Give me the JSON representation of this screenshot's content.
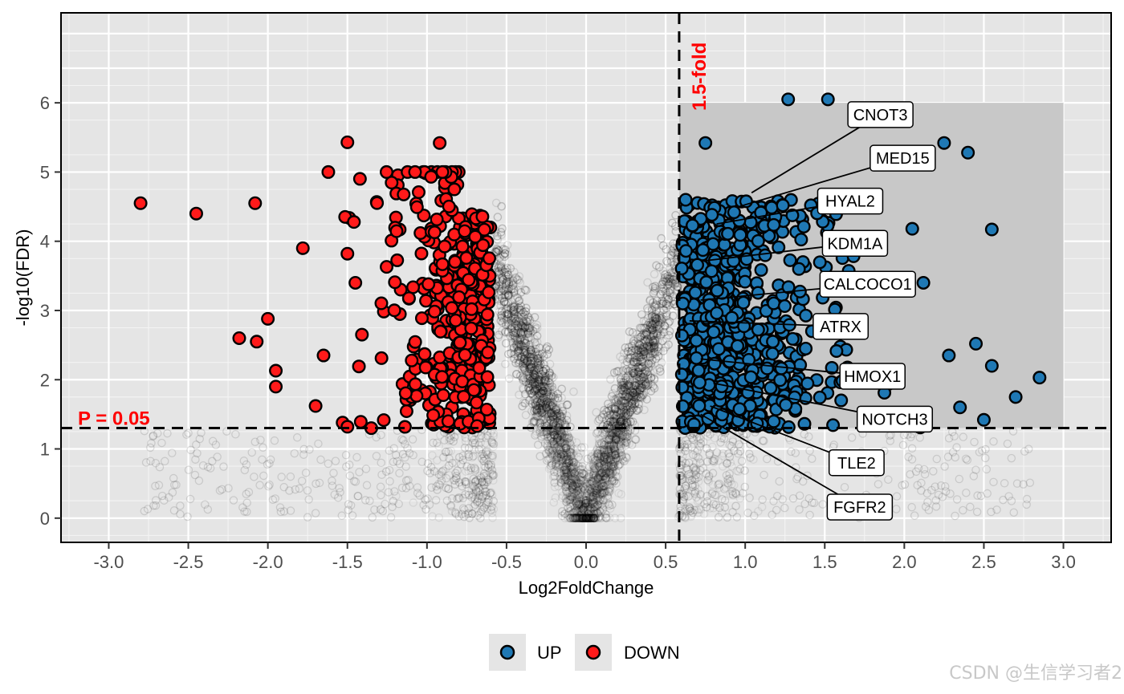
{
  "chart_data": {
    "type": "scatter",
    "title": "",
    "xlabel": "Log2FoldChange",
    "ylabel": "-log10(FDR)",
    "xlim": [
      -3.3,
      3.3
    ],
    "ylim": [
      -0.35,
      7.3
    ],
    "x_ticks": [
      -3.0,
      -2.5,
      -2.0,
      -1.5,
      -1.0,
      -0.5,
      0.0,
      0.5,
      1.0,
      1.5,
      2.0,
      2.5,
      3.0
    ],
    "x_tick_labels": [
      "-3.0",
      "-2.5",
      "-2.0",
      "-1.5",
      "-1.0",
      "-0.5",
      "0.0",
      "0.5",
      "1.0",
      "1.5",
      "2.0",
      "2.5",
      "3.0"
    ],
    "y_ticks": [
      0,
      1,
      2,
      3,
      4,
      5,
      6
    ],
    "y_tick_labels": [
      "0",
      "1",
      "2",
      "3",
      "4",
      "5",
      "6"
    ],
    "grid": true,
    "threshold_lines": {
      "fold_x": 0.585,
      "fold_label": "1.5-fold",
      "p_y": 1.301,
      "p_label": "P = 0.05"
    },
    "highlight_region": {
      "x": [
        0.585,
        3.0
      ],
      "y": [
        1.301,
        6.0
      ]
    },
    "legend": {
      "position": "bottom",
      "entries": [
        {
          "name": "UP",
          "color": "#1f78b4"
        },
        {
          "name": "DOWN",
          "color": "#ff1a1a"
        }
      ]
    },
    "series": [
      {
        "name": "UP",
        "color": "#1f78b4"
      },
      {
        "name": "DOWN",
        "color": "#ff1a1a"
      },
      {
        "name": "not significant",
        "color": "#000000"
      }
    ],
    "highlighted_down_points": [
      {
        "x": -2.8,
        "y": 4.55
      },
      {
        "x": -2.45,
        "y": 4.4
      },
      {
        "x": -2.08,
        "y": 4.55
      },
      {
        "x": -1.5,
        "y": 5.43
      },
      {
        "x": -0.92,
        "y": 5.42
      },
      {
        "x": -1.62,
        "y": 5.0
      },
      {
        "x": -1.78,
        "y": 3.9
      },
      {
        "x": -2.18,
        "y": 2.6
      },
      {
        "x": -2.0,
        "y": 2.88
      },
      {
        "x": -2.07,
        "y": 2.55
      },
      {
        "x": -1.95,
        "y": 2.13
      },
      {
        "x": -1.95,
        "y": 1.9
      },
      {
        "x": -1.65,
        "y": 2.35
      },
      {
        "x": -1.7,
        "y": 1.62
      },
      {
        "x": -1.5,
        "y": 1.32
      },
      {
        "x": -1.35,
        "y": 1.3
      },
      {
        "x": -1.5,
        "y": 3.82
      },
      {
        "x": -1.45,
        "y": 3.4
      }
    ],
    "highlighted_up_points": [
      {
        "x": 1.27,
        "y": 6.05
      },
      {
        "x": 1.52,
        "y": 6.05
      },
      {
        "x": 0.75,
        "y": 5.42
      },
      {
        "x": 2.25,
        "y": 5.42
      },
      {
        "x": 2.4,
        "y": 5.28
      },
      {
        "x": 2.05,
        "y": 4.18
      },
      {
        "x": 2.55,
        "y": 4.17
      },
      {
        "x": 2.12,
        "y": 3.4
      },
      {
        "x": 2.28,
        "y": 2.35
      },
      {
        "x": 2.45,
        "y": 2.52
      },
      {
        "x": 2.55,
        "y": 2.2
      },
      {
        "x": 2.85,
        "y": 2.03
      },
      {
        "x": 2.7,
        "y": 1.75
      },
      {
        "x": 2.35,
        "y": 1.6
      },
      {
        "x": 2.5,
        "y": 1.42
      }
    ],
    "gene_labels": [
      {
        "gene": "CNOT3",
        "x": 1.85,
        "y": 5.83,
        "px": 1.04,
        "py": 4.7
      },
      {
        "gene": "MED15",
        "x": 1.99,
        "y": 5.2,
        "px": 0.96,
        "py": 4.5
      },
      {
        "gene": "HYAL2",
        "x": 1.66,
        "y": 4.58,
        "px": 0.82,
        "py": 4.25
      },
      {
        "gene": "KDM1A",
        "x": 1.69,
        "y": 3.97,
        "px": 0.75,
        "py": 3.72
      },
      {
        "gene": "CALCOCO1",
        "x": 1.77,
        "y": 3.38,
        "px": 0.72,
        "py": 3.15
      },
      {
        "gene": "ATRX",
        "x": 1.6,
        "y": 2.77,
        "px": 0.65,
        "py": 2.85
      },
      {
        "gene": "HMOX1",
        "x": 1.8,
        "y": 2.05,
        "px": 0.72,
        "py": 2.3
      },
      {
        "gene": "NOTCH3",
        "x": 1.94,
        "y": 1.43,
        "px": 0.8,
        "py": 1.95
      },
      {
        "gene": "TLE2",
        "x": 1.7,
        "y": 0.8,
        "px": 0.78,
        "py": 1.62
      },
      {
        "gene": "FGFR2",
        "x": 1.72,
        "y": 0.16,
        "px": 0.72,
        "py": 1.5
      }
    ]
  },
  "watermark": "CSDN @生信学习者2"
}
